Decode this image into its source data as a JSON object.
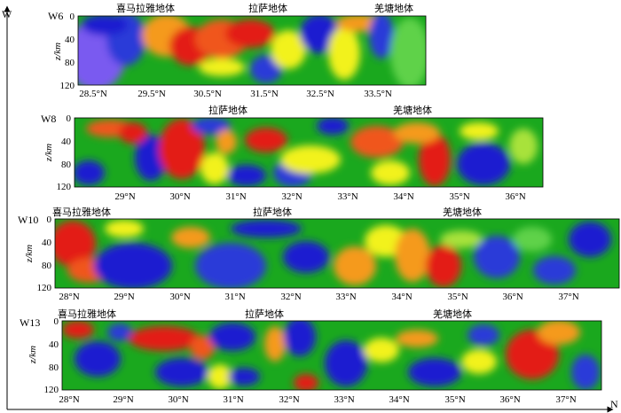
{
  "axes": {
    "vertical_axis_label": "W",
    "horizontal_axis_label": "N"
  },
  "palette": {
    "deep_blue": "#1b1fd0",
    "blue": "#2a3bd8",
    "violet": "#7a5af0",
    "green": "#1aa81e",
    "light_green": "#5fd24a",
    "yellow_green": "#a8e23a",
    "yellow": "#f2f21a",
    "orange": "#f59a1a",
    "red_orange": "#f0561a",
    "red": "#e31c16"
  },
  "profiles": [
    {
      "name": "W6",
      "depth_label": "z/km",
      "depth_ticks": [
        "0",
        "40",
        "80",
        "120"
      ],
      "lat_ticks": [
        "28.5°N",
        "29.5°N",
        "30.5°N",
        "31.5°N",
        "32.5°N",
        "33.5°N"
      ],
      "blocks": [
        "喜马拉雅地体",
        "拉萨地体",
        "羌塘地体"
      ]
    },
    {
      "name": "W8",
      "depth_label": "z/km",
      "depth_ticks": [
        "0",
        "40",
        "80",
        "120"
      ],
      "lat_ticks": [
        "29°N",
        "30°N",
        "31°N",
        "32°N",
        "33°N",
        "34°N",
        "35°N",
        "36°N"
      ],
      "blocks": [
        "拉萨地体",
        "羌塘地体"
      ]
    },
    {
      "name": "W10",
      "depth_label": "z/km",
      "depth_ticks": [
        "0",
        "40",
        "80",
        "120"
      ],
      "lat_ticks": [
        "28°N",
        "29°N",
        "30°N",
        "31°N",
        "32°N",
        "33°N",
        "34°N",
        "35°N",
        "36°N",
        "37°N"
      ],
      "blocks": [
        "喜马拉雅地体",
        "拉萨地体",
        "羌塘地体"
      ]
    },
    {
      "name": "W13",
      "depth_label": "z/km",
      "depth_ticks": [
        "0",
        "40",
        "80",
        "120"
      ],
      "lat_ticks": [
        "28°N",
        "29°N",
        "30°N",
        "31°N",
        "32°N",
        "33°N",
        "34°N",
        "35°N",
        "36°N",
        "37°N"
      ],
      "blocks": [
        "喜马拉雅地体",
        "拉萨地体",
        "羌塘地体"
      ]
    }
  ]
}
